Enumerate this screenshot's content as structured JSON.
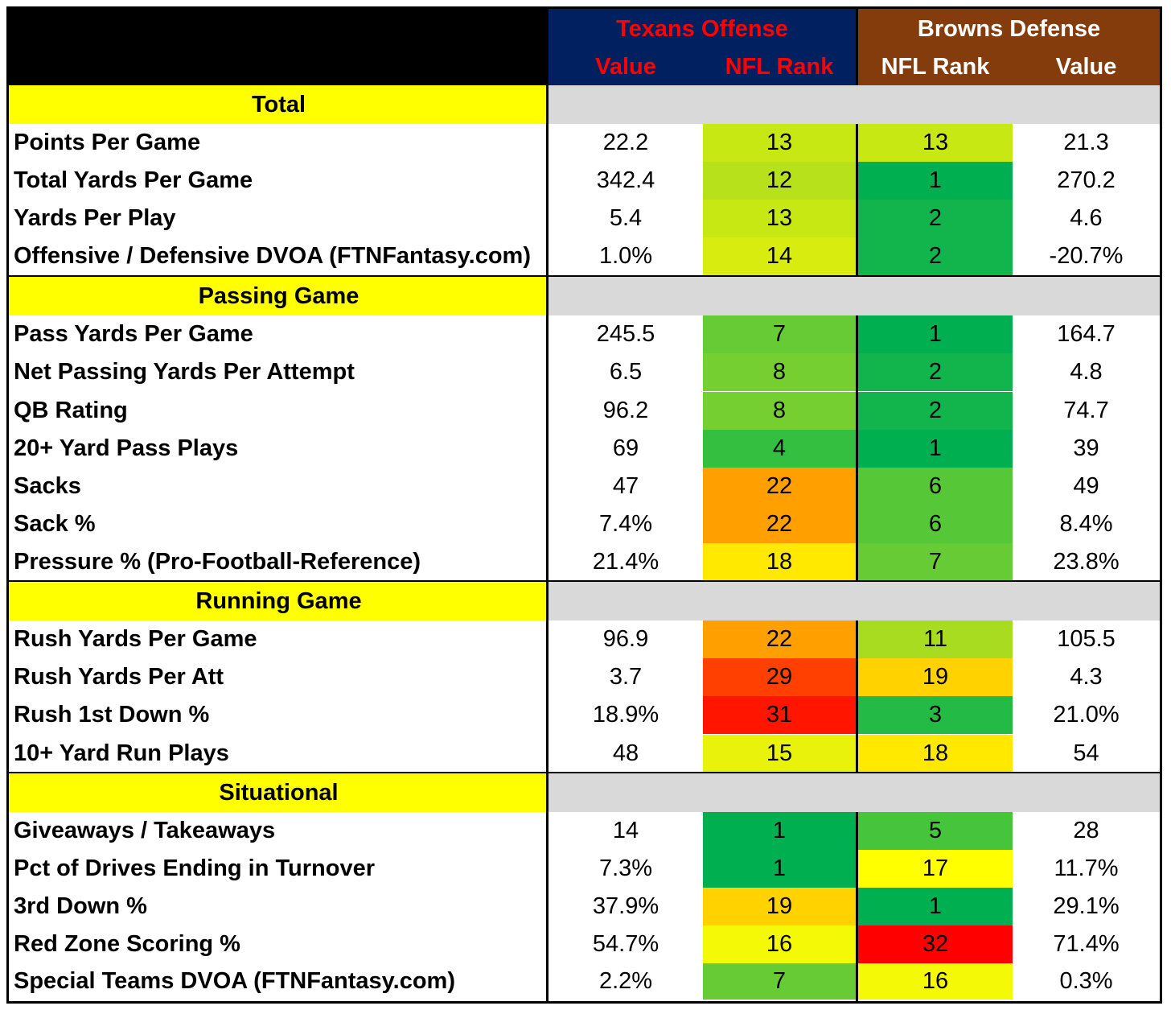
{
  "header": {
    "texans_title": "Texans Offense",
    "browns_title": "Browns Defense",
    "texans_value": "Value",
    "texans_rank": "NFL Rank",
    "browns_rank": "NFL Rank",
    "browns_value": "Value"
  },
  "colors": {
    "texans_header_bg": "#002060",
    "texans_header_text": "#ff0000",
    "browns_header_bg": "#843c0c",
    "browns_header_text": "#ffffff",
    "section_label_bg": "#ffff00",
    "section_fill_bg": "#d9d9d9"
  },
  "sections": [
    {
      "title": "Total",
      "rows": [
        {
          "metric": "Points Per Game",
          "t_value": "22.2",
          "t_rank": "13",
          "b_rank": "13",
          "b_value": "21.3"
        },
        {
          "metric": "Total Yards Per Game",
          "t_value": "342.4",
          "t_rank": "12",
          "b_rank": "1",
          "b_value": "270.2"
        },
        {
          "metric": "Yards Per Play",
          "t_value": "5.4",
          "t_rank": "13",
          "b_rank": "2",
          "b_value": "4.6"
        },
        {
          "metric": "Offensive / Defensive DVOA (FTNFantasy.com)",
          "t_value": "1.0%",
          "t_rank": "14",
          "b_rank": "2",
          "b_value": "-20.7%"
        }
      ]
    },
    {
      "title": "Passing Game",
      "rows": [
        {
          "metric": "Pass Yards Per Game",
          "t_value": "245.5",
          "t_rank": "7",
          "b_rank": "1",
          "b_value": "164.7"
        },
        {
          "metric": "Net Passing Yards Per Attempt",
          "t_value": "6.5",
          "t_rank": "8",
          "b_rank": "2",
          "b_value": "4.8"
        },
        {
          "metric": "QB Rating",
          "t_value": "96.2",
          "t_rank": "8",
          "b_rank": "2",
          "b_value": "74.7"
        },
        {
          "metric": "20+ Yard Pass Plays",
          "t_value": "69",
          "t_rank": "4",
          "b_rank": "1",
          "b_value": "39"
        },
        {
          "metric": "Sacks",
          "t_value": "47",
          "t_rank": "22",
          "b_rank": "6",
          "b_value": "49"
        },
        {
          "metric": "Sack %",
          "t_value": "7.4%",
          "t_rank": "22",
          "b_rank": "6",
          "b_value": "8.4%"
        },
        {
          "metric": "Pressure % (Pro-Football-Reference)",
          "t_value": "21.4%",
          "t_rank": "18",
          "b_rank": "7",
          "b_value": "23.8%"
        }
      ]
    },
    {
      "title": "Running Game",
      "rows": [
        {
          "metric": "Rush Yards Per Game",
          "t_value": "96.9",
          "t_rank": "22",
          "b_rank": "11",
          "b_value": "105.5"
        },
        {
          "metric": "Rush Yards Per Att",
          "t_value": "3.7",
          "t_rank": "29",
          "b_rank": "19",
          "b_value": "4.3"
        },
        {
          "metric": "Rush 1st Down %",
          "t_value": "18.9%",
          "t_rank": "31",
          "b_rank": "3",
          "b_value": "21.0%"
        },
        {
          "metric": "10+ Yard Run Plays",
          "t_value": "48",
          "t_rank": "15",
          "b_rank": "18",
          "b_value": "54"
        }
      ]
    },
    {
      "title": "Situational",
      "rows": [
        {
          "metric": "Giveaways / Takeaways",
          "t_value": "14",
          "t_rank": "1",
          "b_rank": "5",
          "b_value": "28"
        },
        {
          "metric": "Pct of Drives Ending in Turnover",
          "t_value": "7.3%",
          "t_rank": "1",
          "b_rank": "17",
          "b_value": "11.7%"
        },
        {
          "metric": "3rd Down %",
          "t_value": "37.9%",
          "t_rank": "19",
          "b_rank": "1",
          "b_value": "29.1%"
        },
        {
          "metric": "Red Zone Scoring %",
          "t_value": "54.7%",
          "t_rank": "16",
          "b_rank": "32",
          "b_value": "71.4%"
        },
        {
          "metric": "Special Teams DVOA  (FTNFantasy.com)",
          "t_value": "2.2%",
          "t_rank": "7",
          "b_rank": "16",
          "b_value": "0.3%"
        }
      ]
    }
  ]
}
